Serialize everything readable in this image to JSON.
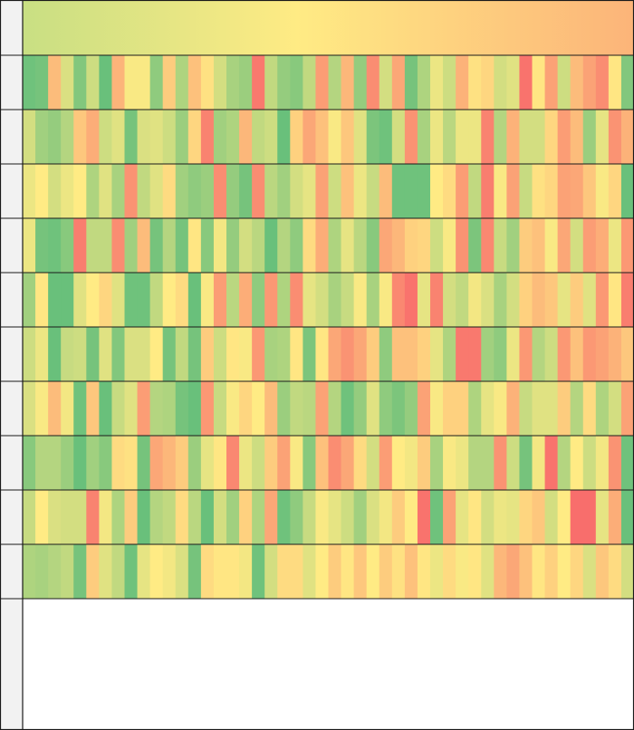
{
  "chart_data": {
    "type": "heatmap",
    "title": "",
    "xlabel": "",
    "ylabel": "",
    "grid": true,
    "colorscale": [
      "#63be7b",
      "#ffeb84",
      "#f8696b"
    ],
    "summary_row": {
      "colors": [
        "#c8df83",
        "#ffeb84",
        "#fcb479"
      ]
    },
    "rows": [
      [
        0.04,
        0.06,
        0.68,
        0.38,
        0.1,
        0.34,
        0.02,
        0.71,
        0.48,
        0.48,
        0.14,
        0.62,
        0.24,
        0.66,
        0.54,
        0.36,
        0.22,
        0.18,
        0.94,
        0.3,
        0.16,
        0.12,
        0.3,
        0.8,
        0.26,
        0.7,
        0.16,
        0.86,
        0.36,
        0.76,
        0.06,
        0.24,
        0.44,
        0.34,
        0.72,
        0.54,
        0.58,
        0.36,
        0.4,
        0.96,
        0.52,
        0.78,
        0.34,
        0.68,
        0.78,
        0.86,
        0.52,
        0.1
      ],
      [
        0.36,
        0.2,
        0.16,
        0.26,
        0.64,
        0.74,
        0.34,
        0.4,
        0.06,
        0.38,
        0.4,
        0.34,
        0.18,
        0.58,
        0.9,
        0.2,
        0.24,
        0.7,
        0.3,
        0.34,
        0.02,
        0.6,
        0.76,
        0.66,
        0.48,
        0.64,
        0.4,
        0.08,
        0.04,
        0.36,
        0.84,
        0.22,
        0.44,
        0.28,
        0.44,
        0.44,
        0.9,
        0.26,
        0.72,
        0.36,
        0.36,
        0.58,
        0.8,
        0.68,
        0.18,
        0.42,
        0.84,
        0.72
      ],
      [
        0.44,
        0.5,
        0.36,
        0.44,
        0.5,
        0.24,
        0.4,
        0.22,
        0.84,
        0.3,
        0.4,
        0.56,
        0.2,
        0.14,
        0.18,
        0.86,
        0.16,
        0.06,
        0.86,
        0.28,
        0.2,
        0.36,
        0.42,
        0.78,
        0.34,
        0.66,
        0.44,
        0.32,
        0.68,
        0.04,
        0.04,
        0.04,
        0.5,
        0.56,
        0.8,
        0.3,
        0.92,
        0.48,
        0.78,
        0.32,
        0.54,
        0.58,
        0.78,
        0.76,
        0.64,
        0.48,
        0.58,
        0.02
      ],
      [
        0.44,
        0.06,
        0.04,
        0.12,
        0.92,
        0.3,
        0.3,
        0.86,
        0.2,
        0.68,
        0.06,
        0.26,
        0.06,
        0.52,
        0.12,
        0.46,
        0.16,
        0.36,
        0.28,
        0.02,
        0.26,
        0.14,
        0.56,
        0.74,
        0.24,
        0.42,
        0.28,
        0.12,
        0.76,
        0.7,
        0.6,
        0.58,
        0.34,
        0.48,
        0.84,
        0.08,
        0.88,
        0.32,
        0.2,
        0.62,
        0.66,
        0.48,
        0.76,
        0.36,
        0.8,
        0.74,
        0.44,
        0.82
      ],
      [
        0.2,
        0.52,
        0.02,
        0.02,
        0.4,
        0.5,
        0.58,
        0.4,
        0.04,
        0.04,
        0.3,
        0.5,
        0.56,
        0.02,
        0.48,
        0.8,
        0.28,
        0.74,
        0.14,
        0.82,
        0.24,
        0.86,
        0.42,
        0.36,
        0.22,
        0.32,
        0.48,
        0.22,
        0.48,
        0.88,
        0.96,
        0.42,
        0.9,
        0.36,
        0.3,
        0.46,
        0.38,
        0.22,
        0.36,
        0.6,
        0.68,
        0.64,
        0.42,
        0.62,
        0.4,
        0.82,
        0.52,
        0.92
      ],
      [
        0.34,
        0.44,
        0.02,
        0.32,
        0.34,
        0.06,
        0.4,
        0.1,
        0.38,
        0.38,
        0.5,
        0.06,
        0.3,
        0.06,
        0.62,
        0.34,
        0.52,
        0.48,
        0.82,
        0.22,
        0.24,
        0.52,
        0.08,
        0.52,
        0.76,
        0.84,
        0.76,
        0.62,
        0.14,
        0.66,
        0.66,
        0.6,
        0.42,
        0.24,
        0.94,
        0.94,
        0.2,
        0.14,
        0.44,
        0.82,
        0.26,
        0.34,
        0.82,
        0.66,
        0.82,
        0.78,
        0.72,
        0.64
      ],
      [
        0.38,
        0.48,
        0.68,
        0.46,
        0.04,
        0.64,
        0.02,
        0.32,
        0.4,
        0.8,
        0.26,
        0.24,
        0.06,
        0.02,
        0.82,
        0.32,
        0.48,
        0.58,
        0.5,
        0.68,
        0.18,
        0.3,
        0.28,
        0.78,
        0.26,
        0.04,
        0.16,
        0.4,
        0.14,
        0.08,
        0.16,
        0.78,
        0.48,
        0.6,
        0.6,
        0.24,
        0.42,
        0.48,
        0.72,
        0.32,
        0.4,
        0.4,
        0.62,
        0.26,
        0.56,
        0.24,
        0.36,
        0.78
      ],
      [
        0.12,
        0.26,
        0.26,
        0.18,
        0.02,
        0.2,
        0.12,
        0.56,
        0.54,
        0.06,
        0.76,
        0.7,
        0.62,
        0.18,
        0.42,
        0.52,
        0.88,
        0.44,
        0.34,
        0.62,
        0.78,
        0.48,
        0.12,
        0.66,
        0.86,
        0.76,
        0.56,
        0.36,
        0.8,
        0.5,
        0.46,
        0.62,
        0.22,
        0.48,
        0.44,
        0.26,
        0.26,
        0.84,
        0.34,
        0.06,
        0.46,
        0.96,
        0.26,
        0.5,
        0.34,
        0.46,
        0.84,
        0.04
      ],
      [
        0.32,
        0.5,
        0.38,
        0.36,
        0.36,
        0.9,
        0.46,
        0.24,
        0.62,
        0.02,
        0.26,
        0.3,
        0.56,
        0.28,
        0.02,
        0.36,
        0.2,
        0.6,
        0.24,
        0.76,
        0.04,
        0.14,
        0.32,
        0.48,
        0.42,
        0.34,
        0.2,
        0.38,
        0.46,
        0.62,
        0.5,
        0.96,
        0.04,
        0.78,
        0.42,
        0.52,
        0.36,
        0.44,
        0.42,
        0.58,
        0.64,
        0.36,
        0.5,
        0.98,
        0.98,
        0.42,
        0.74,
        0.02
      ],
      [
        0.24,
        0.22,
        0.26,
        0.3,
        0.06,
        0.62,
        0.4,
        0.3,
        0.04,
        0.42,
        0.5,
        0.46,
        0.38,
        0.06,
        0.56,
        0.52,
        0.52,
        0.46,
        0.04,
        0.36,
        0.56,
        0.56,
        0.4,
        0.5,
        0.62,
        0.52,
        0.64,
        0.5,
        0.62,
        0.54,
        0.66,
        0.52,
        0.44,
        0.56,
        0.48,
        0.52,
        0.4,
        0.7,
        0.76,
        0.66,
        0.52,
        0.6,
        0.5,
        0.58,
        0.38,
        0.64,
        0.56,
        0.36
      ]
    ]
  }
}
